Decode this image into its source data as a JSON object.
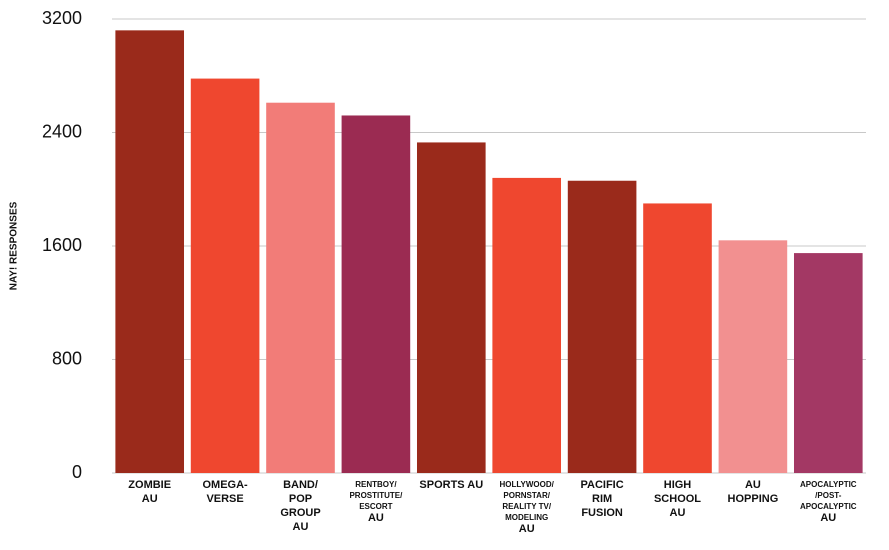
{
  "chart_data": {
    "type": "bar",
    "y_label": "NAY! RESPONSES",
    "categories": [
      [
        "ZOMBIE",
        "AU"
      ],
      [
        "OMEGA-",
        "VERSE"
      ],
      [
        "BAND/",
        "POP",
        "GROUP",
        "AU"
      ],
      [
        "RENTBOY/",
        "PROSTITUTE/",
        "ESCORT",
        "AU"
      ],
      [
        "SPORTS AU"
      ],
      [
        "HOLLYWOOD/",
        "PORNSTAR/",
        "REALITY TV/",
        "MODELING",
        "AU"
      ],
      [
        "PACIFIC",
        "RIM",
        "FUSION"
      ],
      [
        "HIGH",
        "SCHOOL",
        "AU"
      ],
      [
        "AU",
        "HOPPING"
      ],
      [
        "APOCALYPTIC",
        "/POST-",
        "APOCALYPTIC",
        "AU"
      ]
    ],
    "values": [
      3120,
      2780,
      2610,
      2520,
      2330,
      2080,
      2060,
      1900,
      1640,
      1550
    ],
    "colors": [
      "#9a2a1b",
      "#ef472f",
      "#f27c78",
      "#9b2b52",
      "#9a2a1b",
      "#ef472f",
      "#9a2a1b",
      "#ef472f",
      "#f29090",
      "#a33864"
    ],
    "ylim": [
      0,
      3200
    ],
    "yticks": [
      0,
      800,
      1600,
      2400,
      3200
    ],
    "grid": true
  }
}
